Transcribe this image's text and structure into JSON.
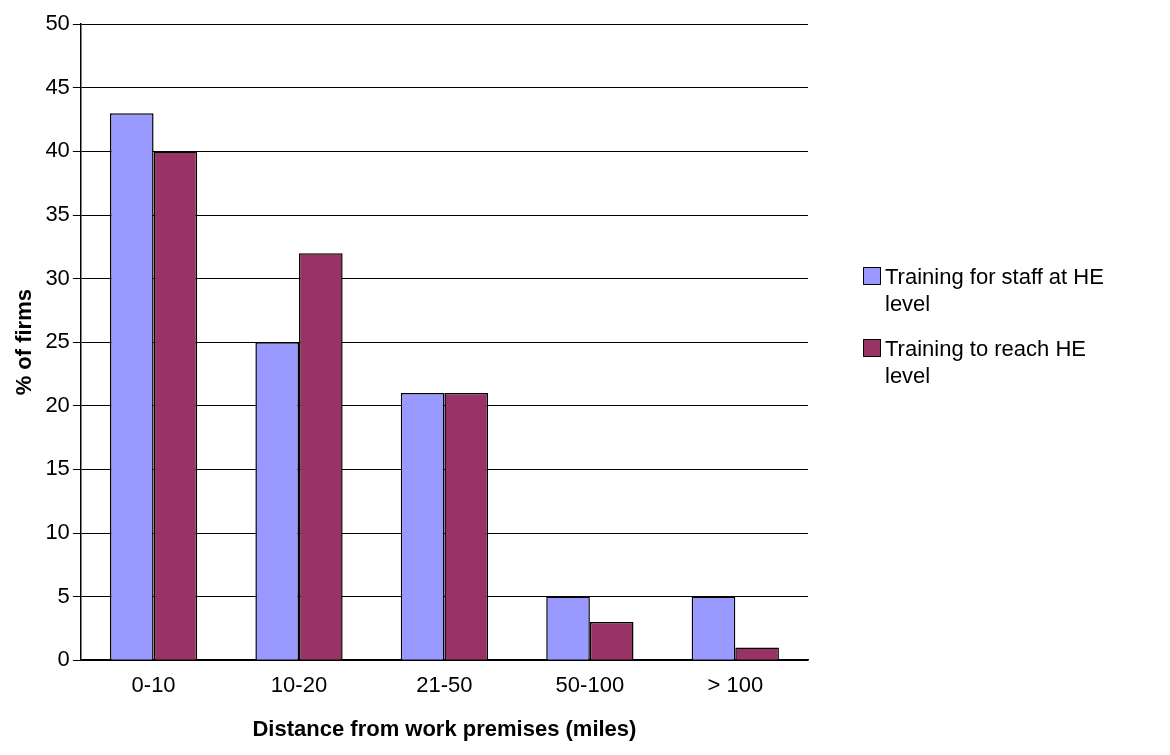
{
  "chart_data": {
    "type": "bar",
    "xlabel": "Distance from work premises (miles)",
    "ylabel": "% of firms",
    "categories": [
      "0-10",
      "10-20",
      "21-50",
      "50-100",
      "> 100"
    ],
    "series": [
      {
        "name": "Training for staff at HE level",
        "color": "#9999ff",
        "values": [
          43,
          25,
          21,
          5,
          5
        ]
      },
      {
        "name": "Training to reach HE level",
        "color": "#993366",
        "values": [
          40,
          32,
          21,
          3,
          1
        ]
      }
    ],
    "ylim": [
      0,
      50
    ],
    "yticks": [
      0,
      5,
      10,
      15,
      20,
      25,
      30,
      35,
      40,
      45,
      50
    ],
    "grid": "y",
    "legend": "right"
  }
}
